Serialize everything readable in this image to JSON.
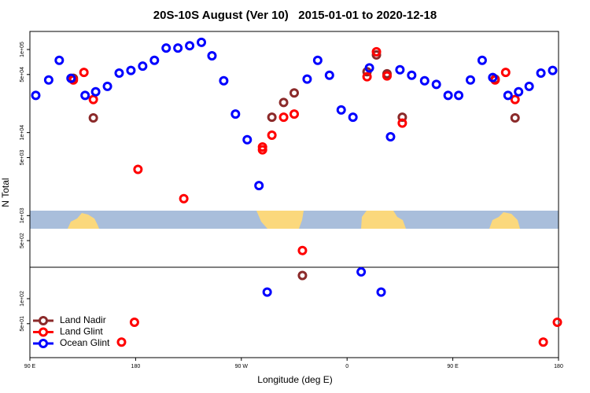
{
  "chart_data": {
    "type": "scatter",
    "title": "20S-10S August (Ver 10)   2015-01-01 to 2020-12-18",
    "x_label": "Longitude (deg E)",
    "y_label": "N Total",
    "log_scale": true,
    "legend": "lower left",
    "xlim": [
      90,
      540
    ],
    "xticks": [
      {
        "value": 90,
        "label": "90 E"
      },
      {
        "value": 180,
        "label": "180"
      },
      {
        "value": 270,
        "label": "90 W"
      },
      {
        "value": 360,
        "label": "0"
      },
      {
        "value": 450,
        "label": "90 E"
      },
      {
        "value": 540,
        "label": "180"
      }
    ],
    "ylim": [
      19.5,
      165000
    ],
    "yticks": [
      {
        "value": 100000,
        "label": "1e+05"
      },
      {
        "value": 50000,
        "label": "5e+04"
      },
      {
        "value": 10000,
        "label": "1e+04"
      },
      {
        "value": 5000,
        "label": "5e+03"
      },
      {
        "value": 1000,
        "label": "1e+03"
      },
      {
        "value": 500,
        "label": "5e+02"
      },
      {
        "value": 100,
        "label": "1e+02"
      },
      {
        "value": 50,
        "label": "5e+01"
      }
    ],
    "series": [
      {
        "name": "Land Nadir",
        "color": "#8b2a2a",
        "x": [
          127,
          144,
          296,
          306,
          315,
          322,
          377,
          385,
          394,
          407,
          486,
          503
        ],
        "values": [
          45000,
          15000,
          15300,
          23000,
          30000,
          190,
          54000,
          86000,
          51000,
          15300,
          44000,
          15000
        ]
      },
      {
        "name": "Land Glint",
        "color": "#ff0000",
        "x": [
          127,
          136,
          144,
          168,
          179,
          182,
          221,
          288,
          288,
          296,
          306,
          315,
          322,
          377,
          385,
          394,
          407,
          486,
          495,
          503,
          527,
          539
        ],
        "values": [
          43000,
          53000,
          25000,
          30,
          52,
          3600,
          1600,
          6700,
          6200,
          9300,
          15300,
          16700,
          380,
          47000,
          94000,
          48000,
          13000,
          43000,
          53000,
          25000,
          30,
          52
        ]
      },
      {
        "name": "Ocean Glint",
        "color": "#0000ff",
        "x": [
          95,
          106,
          115,
          125,
          137,
          146,
          156,
          166,
          176,
          186,
          196,
          206,
          216,
          226,
          236,
          245,
          255,
          265,
          275,
          285,
          292,
          326,
          335,
          345,
          355,
          365,
          372,
          379,
          389,
          397,
          405,
          415,
          426,
          436,
          446,
          455,
          465,
          475,
          484,
          497,
          506,
          515,
          525,
          535
        ],
        "values": [
          28000,
          43000,
          74000,
          45000,
          28000,
          31000,
          36000,
          52000,
          56000,
          63000,
          74000,
          104000,
          104000,
          111000,
          122000,
          84000,
          42000,
          16700,
          8200,
          2300,
          120,
          44000,
          74000,
          49000,
          18700,
          15300,
          210,
          60000,
          120,
          8900,
          57000,
          49000,
          42000,
          38000,
          28000,
          28000,
          43000,
          74000,
          46000,
          28000,
          31000,
          36000,
          52000,
          56000
        ]
      }
    ]
  }
}
